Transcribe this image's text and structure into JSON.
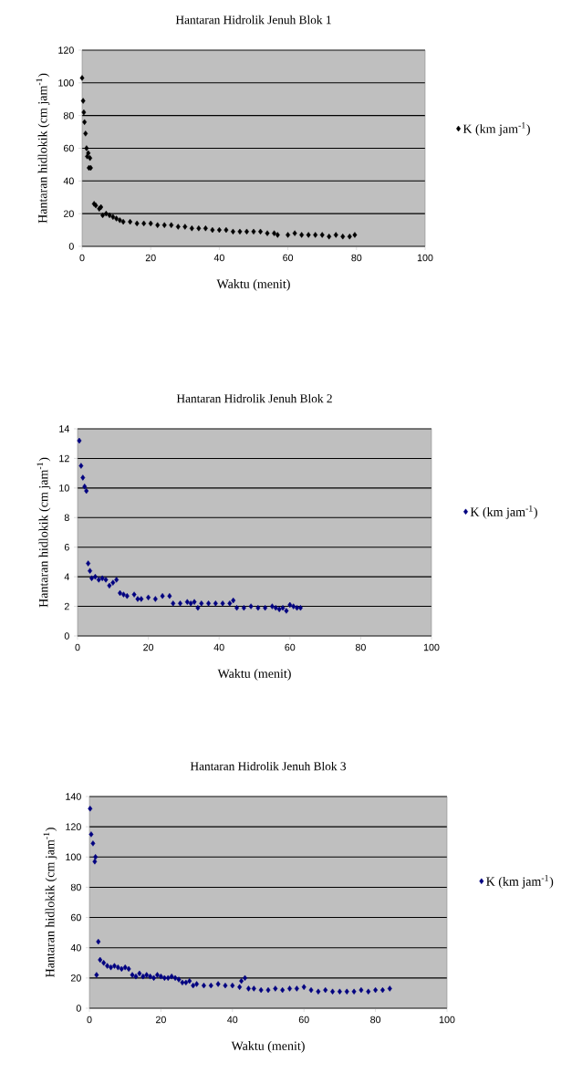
{
  "chart_data": [
    {
      "type": "scatter",
      "title": "Hantaran Hidrolik Jenuh Blok 1",
      "xlabel": "Waktu (menit)",
      "ylabel": "Hantaran hidlokik (cm jam$^{-1}$)",
      "xlim": [
        0,
        100
      ],
      "ylim": [
        0,
        120
      ],
      "xticks": [
        0,
        20,
        40,
        60,
        80,
        100
      ],
      "yticks": [
        0,
        20,
        40,
        60,
        80,
        100,
        120
      ],
      "grid": "y",
      "legend": "right",
      "marker": "diamond",
      "x": [
        0,
        0.3,
        0.5,
        0.7,
        1,
        1.3,
        1.5,
        1.8,
        2,
        2.3,
        2.5,
        3.5,
        4,
        5,
        5.5,
        6,
        7,
        8,
        9,
        10,
        11,
        12,
        14,
        16,
        18,
        20,
        22,
        24,
        26,
        28,
        30,
        32,
        34,
        36,
        38,
        40,
        42,
        44,
        46,
        48,
        50,
        52,
        54,
        56,
        57,
        60,
        62,
        64,
        66,
        68,
        70,
        72,
        74,
        76,
        78,
        79.5
      ],
      "series": [
        {
          "name": "K (km jam$^{-1}$)",
          "color": "#000000",
          "values": [
            103,
            89,
            82,
            76,
            69,
            60,
            55,
            57,
            48,
            54,
            48,
            26,
            25,
            23,
            24,
            19,
            20,
            19,
            18,
            17,
            16,
            15,
            15,
            14,
            14,
            14,
            13,
            13,
            13,
            12,
            12,
            11,
            11,
            11,
            10,
            10,
            10,
            9,
            9,
            9,
            9,
            9,
            8,
            8,
            7,
            7,
            8,
            7,
            7,
            7,
            7,
            6,
            7,
            6,
            6,
            7
          ]
        }
      ]
    },
    {
      "type": "scatter",
      "title": "Hantaran Hidrolik Jenuh Blok 2",
      "xlabel": "Waktu (menit)",
      "ylabel": "Hantaran hidlokik (cm jam$^{-1}$)",
      "xlim": [
        0,
        100
      ],
      "ylim": [
        0,
        14
      ],
      "xticks": [
        0,
        20,
        40,
        60,
        80,
        100
      ],
      "yticks": [
        0,
        2,
        4,
        6,
        8,
        10,
        12,
        14
      ],
      "grid": "y",
      "legend": "right",
      "marker": "diamond",
      "x": [
        0.5,
        1,
        1.5,
        2,
        2.5,
        3,
        3.5,
        4,
        5,
        6,
        7,
        8,
        9,
        10,
        11,
        12,
        13,
        14,
        16,
        17,
        18,
        20,
        22,
        24,
        26,
        27,
        29,
        31,
        32,
        33,
        34,
        35,
        37,
        39,
        41,
        43,
        44,
        45,
        47,
        49,
        51,
        53,
        55,
        56,
        57,
        58,
        59,
        60,
        61,
        62,
        63
      ],
      "series": [
        {
          "name": "K (km jam$^{-1}$)",
          "color": "#000080",
          "values": [
            13.2,
            11.5,
            10.7,
            10.1,
            9.8,
            4.9,
            4.4,
            3.9,
            4.0,
            3.8,
            3.9,
            3.8,
            3.4,
            3.6,
            3.8,
            2.9,
            2.8,
            2.7,
            2.8,
            2.5,
            2.5,
            2.6,
            2.5,
            2.7,
            2.7,
            2.2,
            2.2,
            2.3,
            2.2,
            2.3,
            1.9,
            2.2,
            2.2,
            2.2,
            2.2,
            2.2,
            2.4,
            1.9,
            1.9,
            2.0,
            1.9,
            1.9,
            2.0,
            1.9,
            1.8,
            1.9,
            1.7,
            2.1,
            2.0,
            1.9,
            1.9
          ]
        }
      ]
    },
    {
      "type": "scatter",
      "title": "Hantaran Hidrolik Jenuh Blok 3",
      "xlabel": "Waktu (menit)",
      "ylabel": "Hantaran hidlokik (cm jam$^{-1}$)",
      "xlim": [
        0,
        100
      ],
      "ylim": [
        0,
        140
      ],
      "xticks": [
        0,
        20,
        40,
        60,
        80,
        100
      ],
      "yticks": [
        0,
        20,
        40,
        60,
        80,
        100,
        120,
        140
      ],
      "grid": "y",
      "legend": "right",
      "marker": "diamond",
      "x": [
        0.2,
        0.5,
        1,
        1.5,
        1.7,
        2,
        2.5,
        3,
        4,
        5,
        6,
        7,
        8,
        9,
        10,
        11,
        12,
        13,
        14,
        15,
        16,
        17,
        18,
        19,
        20,
        21,
        22,
        23,
        24,
        25,
        26,
        27,
        28,
        29,
        30,
        32,
        34,
        36,
        38,
        40,
        42,
        42.5,
        43.5,
        44.5,
        46,
        48,
        50,
        52,
        54,
        56,
        58,
        60,
        62,
        64,
        66,
        68,
        70,
        72,
        74,
        76,
        78,
        80,
        82,
        84
      ],
      "series": [
        {
          "name": "K (km jam$^{-1}$)",
          "color": "#000080",
          "values": [
            132,
            115,
            109,
            97,
            100,
            22,
            44,
            32,
            30,
            28,
            27,
            28,
            27,
            26,
            27,
            26,
            22,
            21,
            23,
            21,
            22,
            21,
            20,
            22,
            21,
            20,
            20,
            21,
            20,
            19,
            17,
            17,
            18,
            15,
            16,
            15,
            15,
            16,
            15,
            15,
            14,
            18,
            20,
            13,
            13,
            12,
            12,
            13,
            12,
            13,
            13,
            14,
            12,
            11,
            12,
            11,
            11,
            11,
            11,
            12,
            11,
            12,
            12,
            13
          ]
        }
      ]
    }
  ]
}
